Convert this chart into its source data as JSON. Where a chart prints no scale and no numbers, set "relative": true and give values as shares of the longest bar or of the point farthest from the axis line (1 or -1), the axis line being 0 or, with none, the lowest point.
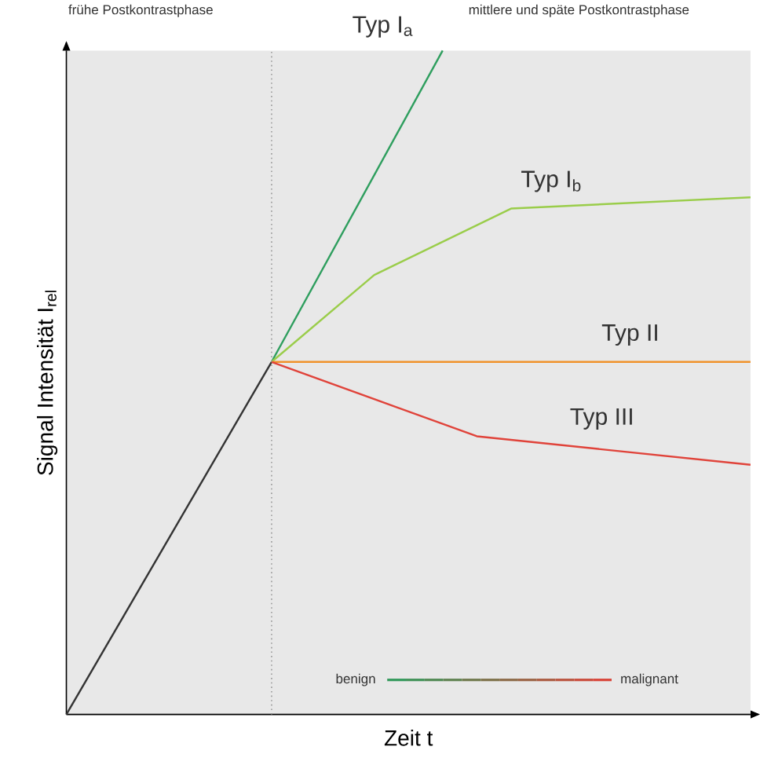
{
  "chart_data": {
    "type": "line",
    "relative": true,
    "xlabel": "Zeit t",
    "ylabel": "Signal Intensität I$_{rel}$",
    "tick_labels": false,
    "categories": [
      null,
      null,
      null,
      null,
      null,
      null,
      null,
      null,
      null,
      null,
      null,
      null,
      null,
      null,
      null,
      null,
      null,
      null,
      null,
      null,
      null
    ],
    "annotations": [
      "frühe Postkontrastphase",
      "mittlere und späte Postkontrastphase",
      "benign",
      "malignant"
    ],
    "series": [
      {
        "color": "#333333",
        "values": [
          0,
          null,
          null,
          null,
          null,
          null,
          0.531,
          null,
          null,
          null,
          null,
          null,
          null,
          null,
          null,
          null,
          null,
          null,
          null,
          null,
          null
        ]
      },
      {
        "name": "Typ I$_{a}$",
        "color": "#2e9e5e",
        "values": [
          null,
          null,
          null,
          null,
          null,
          null,
          0.531,
          null,
          null,
          null,
          null,
          1,
          null,
          null,
          null,
          null,
          null,
          null,
          null,
          null,
          null
        ]
      },
      {
        "name": "Typ I$_{b}$",
        "color": "#9acd4a",
        "values": [
          null,
          null,
          null,
          null,
          null,
          null,
          0.531,
          null,
          null,
          0.662,
          null,
          null,
          null,
          0.762,
          null,
          null,
          null,
          null,
          null,
          null,
          0.779
        ]
      },
      {
        "name": "Typ II",
        "color": "#f0922a",
        "values": [
          null,
          null,
          null,
          null,
          null,
          null,
          0.531,
          null,
          null,
          null,
          null,
          null,
          null,
          null,
          null,
          null,
          null,
          null,
          null,
          null,
          0.531
        ]
      },
      {
        "name": "Typ III",
        "color": "#e0433a",
        "values": [
          null,
          null,
          null,
          null,
          null,
          null,
          0.531,
          null,
          null,
          null,
          null,
          null,
          0.419,
          null,
          null,
          null,
          null,
          null,
          null,
          null,
          0.376
        ]
      }
    ]
  }
}
